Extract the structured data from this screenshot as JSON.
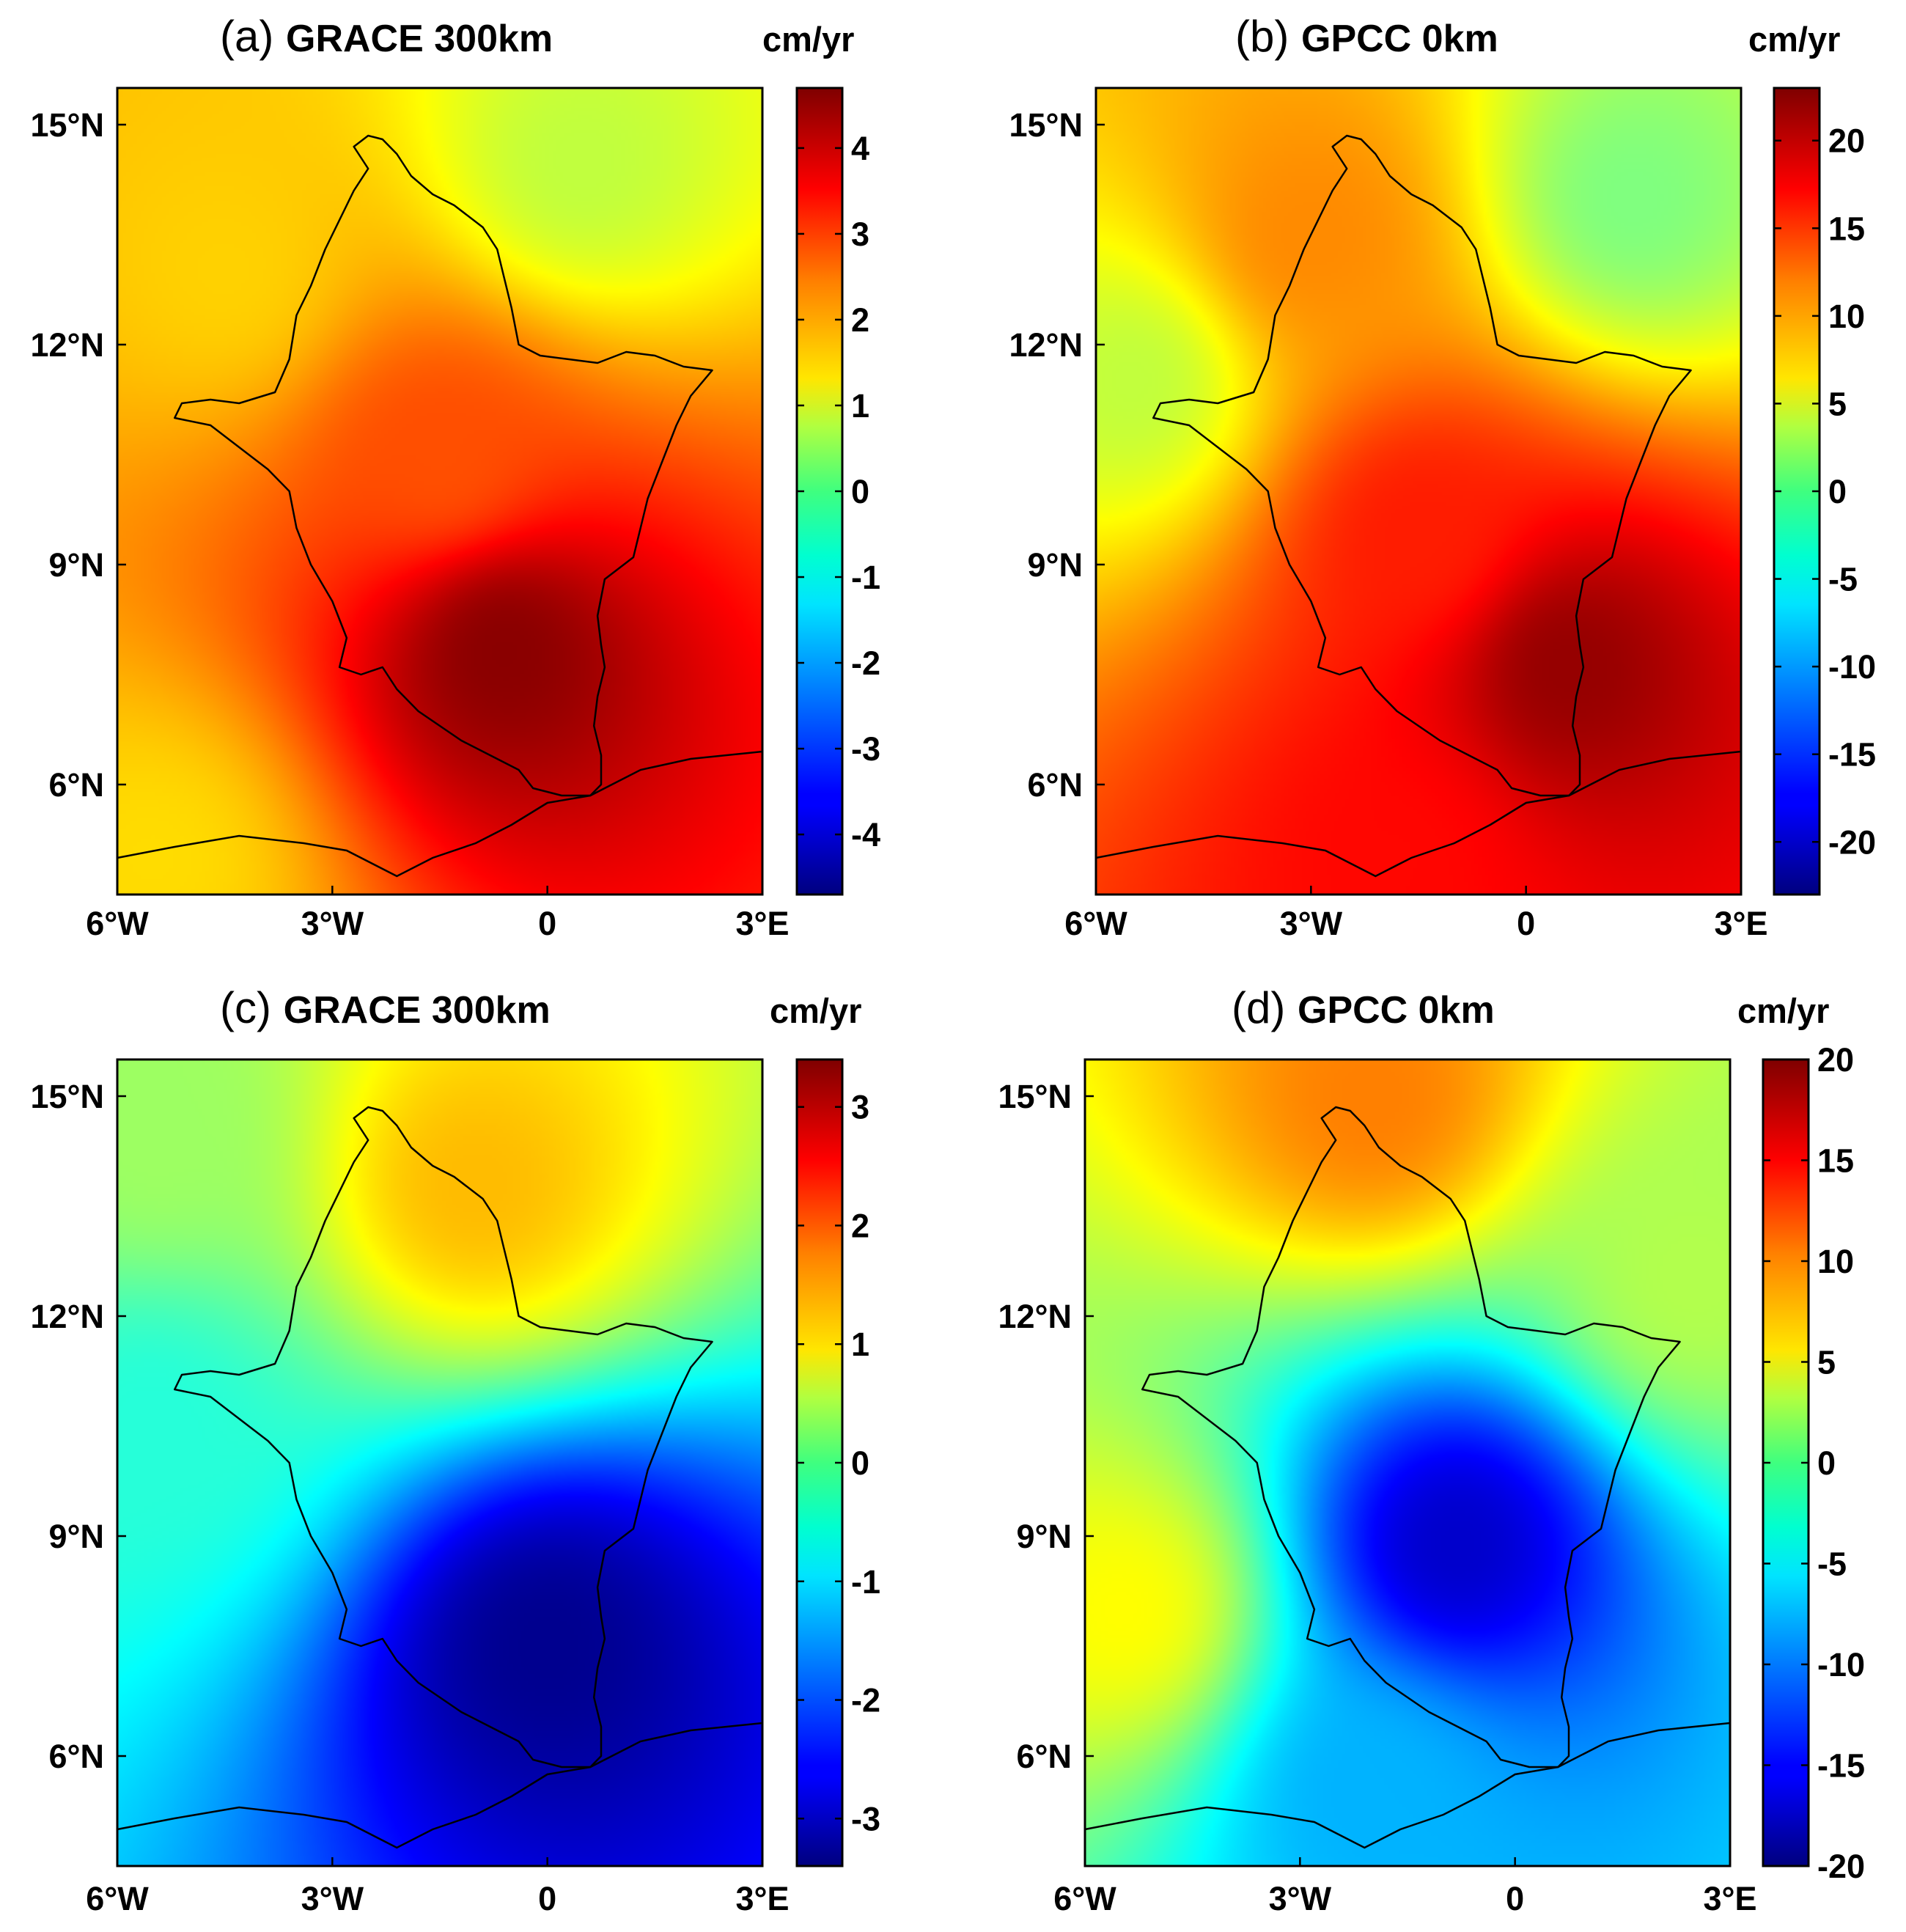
{
  "figure": {
    "colormap": "jet",
    "boundary_color": "#000000",
    "frame_color": "#000000"
  },
  "chart_data": [
    {
      "type": "heatmap",
      "panel": "a",
      "title_letter": "(a)",
      "title": "GRACE 300km",
      "colorbar_unit": "cm/yr",
      "clim": [
        -4.7,
        4.7
      ],
      "colorbar_ticks": [
        4,
        3,
        2,
        1,
        0,
        -1,
        -2,
        -3,
        -4
      ],
      "colorbar_tick_labels": [
        "4",
        "3",
        "2",
        "1",
        "0",
        "-1",
        "-2",
        "-3",
        "-4"
      ],
      "x_range_deg": [
        -6,
        3
      ],
      "y_range_deg": [
        4.5,
        15.5
      ],
      "x_tick_labels": [
        "6°W",
        "3°W",
        "0",
        "3°E"
      ],
      "y_tick_labels": [
        "15°N",
        "12°N",
        "9°N",
        "6°N"
      ],
      "pattern": "single positive maximum centred near 0.6°W, 7.8°N",
      "field_points": [
        {
          "lon": -0.6,
          "lat": 7.8,
          "value": 4.6
        },
        {
          "lon": -1.5,
          "lat": 10.5,
          "value": 2.8
        },
        {
          "lon": -4.5,
          "lat": 13.0,
          "value": 1.6
        },
        {
          "lon": 0.5,
          "lat": 14.5,
          "value": 0.6
        },
        {
          "lon": -5.5,
          "lat": 5.0,
          "value": 1.5
        }
      ]
    },
    {
      "type": "heatmap",
      "panel": "b",
      "title_letter": "(b)",
      "title": "GPCC 0km",
      "colorbar_unit": "cm/yr",
      "clim": [
        -23,
        23
      ],
      "colorbar_ticks": [
        20,
        15,
        10,
        5,
        0,
        -5,
        -10,
        -15,
        -20
      ],
      "colorbar_tick_labels": [
        "20",
        "15",
        "10",
        "5",
        "0",
        "-5",
        "-10",
        "-15",
        "-20"
      ],
      "x_range_deg": [
        -6,
        3
      ],
      "y_range_deg": [
        4.5,
        15.5
      ],
      "x_tick_labels": [
        "6°W",
        "3°W",
        "0",
        "3°E"
      ],
      "y_tick_labels": [
        "15°N",
        "12°N",
        "9°N",
        "6°N"
      ],
      "pattern": "positive maximum near 0.6°E, 7.6°N; weaker maxima in the north; near zero in the north-east",
      "field_points": [
        {
          "lon": 0.6,
          "lat": 7.6,
          "value": 22
        },
        {
          "lon": -1.5,
          "lat": 9.4,
          "value": 16
        },
        {
          "lon": -1.8,
          "lat": 5.0,
          "value": 17
        },
        {
          "lon": -3.0,
          "lat": 13.5,
          "value": 11
        },
        {
          "lon": 1.5,
          "lat": 14.0,
          "value": 0
        },
        {
          "lon": -5.5,
          "lat": 11.5,
          "value": 3
        }
      ]
    },
    {
      "type": "heatmap",
      "panel": "c",
      "title_letter": "(c)",
      "title": "GRACE 300km",
      "colorbar_unit": "cm/yr",
      "clim": [
        -3.4,
        3.4
      ],
      "colorbar_ticks": [
        3,
        2,
        1,
        0,
        -1,
        -2,
        -3
      ],
      "colorbar_tick_labels": [
        "3",
        "2",
        "1",
        "0",
        "-1",
        "-2",
        "-3"
      ],
      "x_range_deg": [
        -6,
        3
      ],
      "y_range_deg": [
        4.5,
        15.5
      ],
      "x_tick_labels": [
        "6°W",
        "3°W",
        "0",
        "3°E"
      ],
      "y_tick_labels": [
        "15°N",
        "12°N",
        "9°N",
        "6°N"
      ],
      "pattern": "negative minimum near 0°, 7.5°N; positive values in the north",
      "field_points": [
        {
          "lon": 0.0,
          "lat": 7.5,
          "value": -3.3
        },
        {
          "lon": -1.0,
          "lat": 13.8,
          "value": 1.3
        },
        {
          "lon": -5.5,
          "lat": 10.5,
          "value": -0.6
        },
        {
          "lon": -5.5,
          "lat": 14.5,
          "value": 0.2
        }
      ]
    },
    {
      "type": "heatmap",
      "panel": "d",
      "title_letter": "(d)",
      "title": "GPCC 0km",
      "colorbar_unit": "cm/yr",
      "clim": [
        -20,
        20
      ],
      "colorbar_ticks": [
        20,
        15,
        10,
        5,
        0,
        -5,
        -10,
        -15,
        -20
      ],
      "colorbar_tick_labels": [
        "20",
        "15",
        "10",
        "5",
        "0",
        "-5",
        "-10",
        "-15",
        "-20"
      ],
      "x_range_deg": [
        -6,
        3
      ],
      "y_range_deg": [
        4.5,
        15.5
      ],
      "x_tick_labels": [
        "6°W",
        "3°W",
        "0",
        "3°E"
      ],
      "y_tick_labels": [
        "15°N",
        "12°N",
        "9°N",
        "6°N"
      ],
      "pattern": "negative minimum near 0.8°W, 8.9°N; positive maximum in the far north",
      "field_points": [
        {
          "lon": -0.8,
          "lat": 8.9,
          "value": -17
        },
        {
          "lon": -2.0,
          "lat": 5.5,
          "value": -8
        },
        {
          "lon": -2.0,
          "lat": 15.0,
          "value": 10
        },
        {
          "lon": -5.5,
          "lat": 8.0,
          "value": 5
        },
        {
          "lon": 2.5,
          "lat": 12.5,
          "value": 2
        }
      ]
    }
  ]
}
